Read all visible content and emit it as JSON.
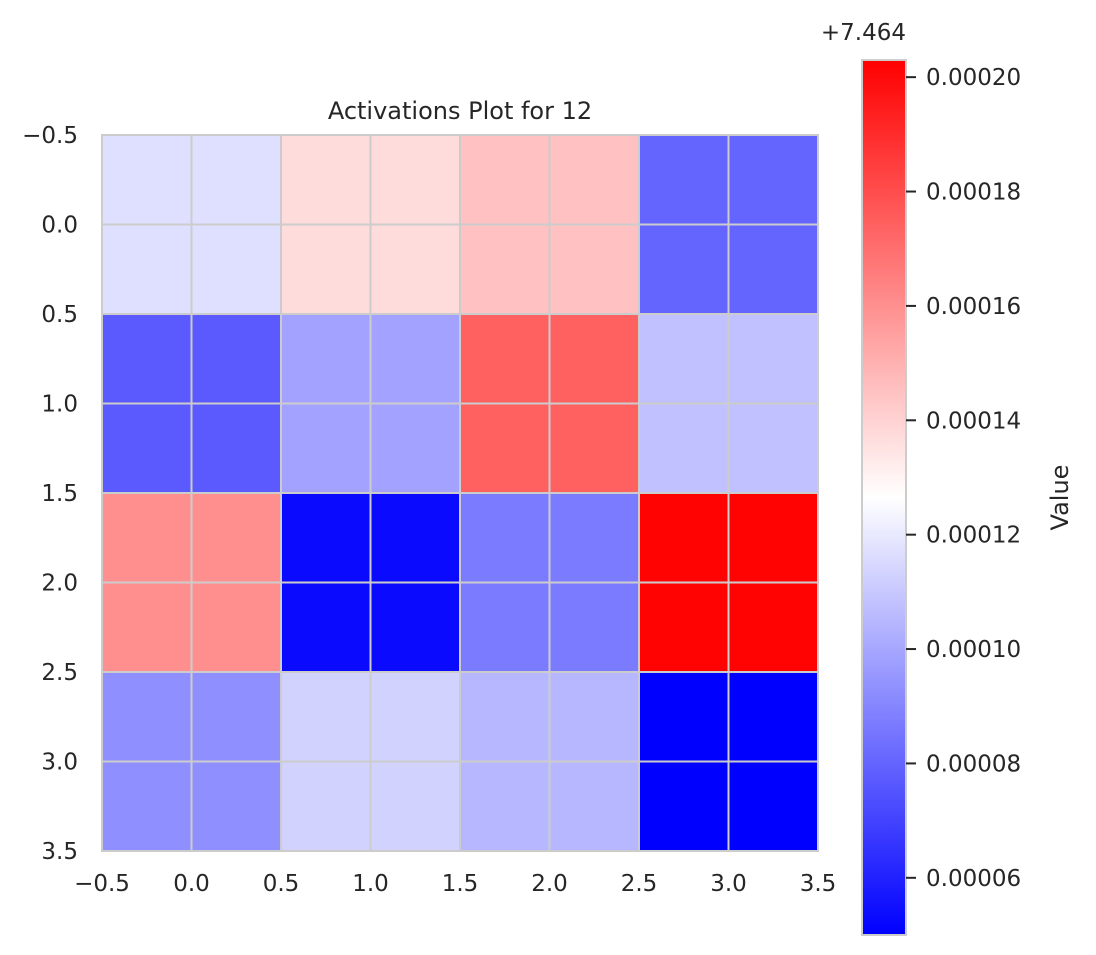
{
  "chart_data": {
    "type": "heatmap",
    "title": "Activations Plot for 12",
    "xlabel": "",
    "ylabel": "",
    "x_ticks": [
      "−0.5",
      "0.0",
      "0.5",
      "1.0",
      "1.5",
      "2.0",
      "2.5",
      "3.0",
      "3.5"
    ],
    "y_ticks": [
      "−0.5",
      "0.0",
      "0.5",
      "1.0",
      "1.5",
      "2.0",
      "2.5",
      "3.0",
      "3.5"
    ],
    "xlim": [
      -0.5,
      3.5
    ],
    "ylim": [
      3.5,
      -0.5
    ],
    "grid": true,
    "colormap": "bwr",
    "offset_label": "+7.464",
    "colorbar": {
      "label": "Value",
      "min": 5e-05,
      "max": 0.000203,
      "ticks": [
        6e-05,
        8e-05,
        0.0001,
        0.00012,
        0.00014,
        0.00016,
        0.00018,
        0.0002
      ],
      "tick_labels": [
        "0.00006",
        "0.00008",
        "0.00010",
        "0.00012",
        "0.00014",
        "0.00016",
        "0.00018",
        "0.00020"
      ]
    },
    "values": [
      [
        0.000117,
        0.000137,
        0.000145,
        8e-05
      ],
      [
        7.7e-05,
        9.9e-05,
        0.000174,
        0.000108
      ],
      [
        0.00016,
        5.3e-05,
        8.7e-05,
        0.000202
      ],
      [
        9.3e-05,
        0.000113,
        0.000105,
        5e-05
      ]
    ],
    "colors": {
      "grid": "#cccccc",
      "text": "#262626",
      "cmap_low": "#0000ff",
      "cmap_mid": "#ffffff",
      "cmap_high": "#ff0000"
    }
  }
}
